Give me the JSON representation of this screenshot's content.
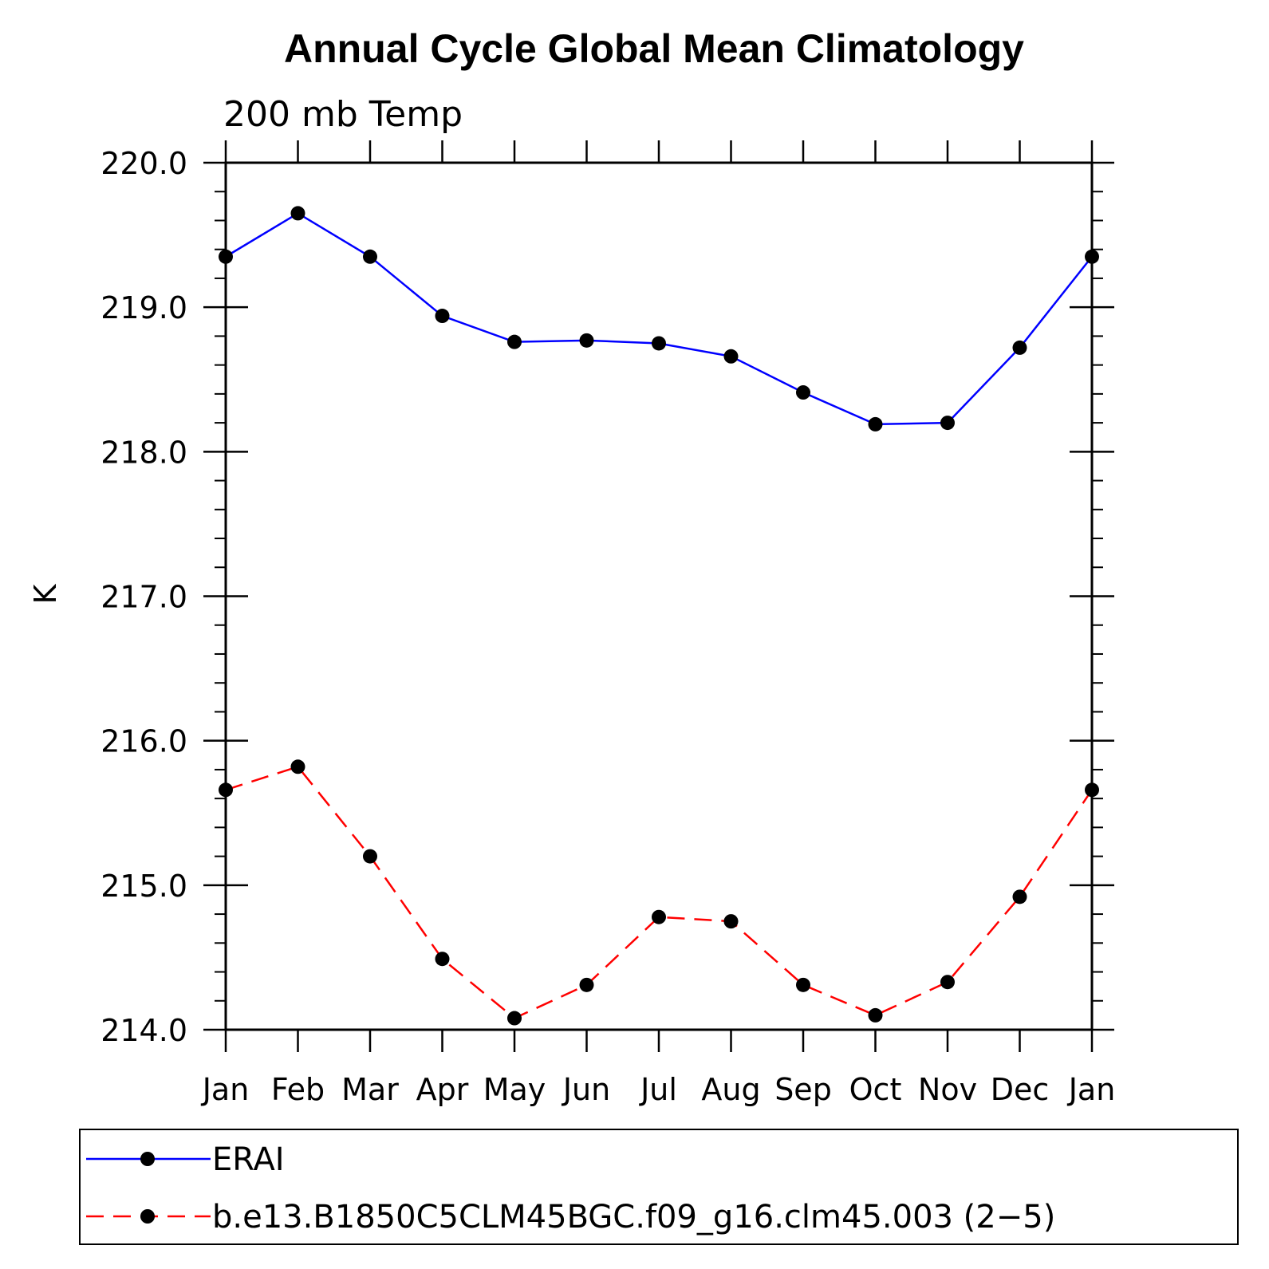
{
  "chart_data": {
    "type": "line",
    "title": "Annual Cycle Global Mean Climatology",
    "subtitle": "200 mb Temp",
    "ylabel": "K",
    "xlabel": "",
    "categories": [
      "Jan",
      "Feb",
      "Mar",
      "Apr",
      "May",
      "Jun",
      "Jul",
      "Aug",
      "Sep",
      "Oct",
      "Nov",
      "Dec",
      "Jan"
    ],
    "ylim": [
      214.0,
      220.0
    ],
    "yticks": [
      "220.0",
      "219.0",
      "218.0",
      "217.0",
      "216.0",
      "215.0",
      "214.0"
    ],
    "ytick_values": [
      220,
      219,
      218,
      217,
      216,
      215,
      214
    ],
    "grid": false,
    "legend_placement": "bottom",
    "series": [
      {
        "name": "ERAI",
        "color": "#0000ff",
        "dash": "solid",
        "values": [
          219.35,
          219.65,
          219.35,
          218.94,
          218.76,
          218.77,
          218.75,
          218.66,
          218.41,
          218.19,
          218.2,
          218.72,
          219.35
        ]
      },
      {
        "name": "b.e13.B1850C5CLM45BGC.f09_g16.clm45.003 (2−5)",
        "color": "#ff0000",
        "dash": "dashed",
        "values": [
          215.66,
          215.82,
          215.2,
          214.49,
          214.08,
          214.31,
          214.78,
          214.75,
          214.31,
          214.1,
          214.33,
          214.92,
          215.66
        ]
      }
    ]
  }
}
